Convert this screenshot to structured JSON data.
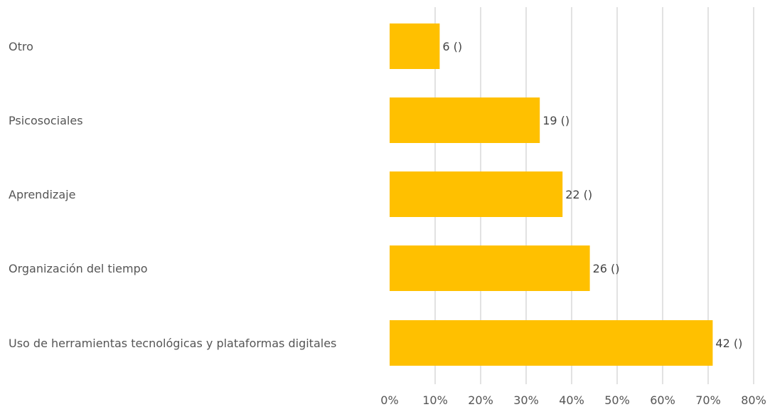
{
  "chart_data": {
    "type": "bar",
    "orientation": "horizontal",
    "categories": [
      "Otro",
      "Psicosociales",
      "Aprendizaje",
      "Organización del tiempo",
      "Uso de herramientas tecnológicas y plataformas digitales"
    ],
    "values": [
      0.11,
      0.33,
      0.38,
      0.44,
      0.71
    ],
    "data_labels": [
      "6 ()",
      "19 ()",
      "22 ()",
      "26 ()",
      "42 ()"
    ],
    "xlim": [
      0,
      0.8
    ],
    "x_ticks": [
      0,
      0.1,
      0.2,
      0.3,
      0.4,
      0.5,
      0.6,
      0.7,
      0.8
    ],
    "x_tick_labels": [
      "0%",
      "10%",
      "20%",
      "30%",
      "40%",
      "50%",
      "60%",
      "70%",
      "80%"
    ],
    "title": "",
    "xlabel": "",
    "ylabel": "",
    "grid": "vertical",
    "legend": "none",
    "colors": {
      "bar": "#FFC000",
      "grid": "#D9D9D9",
      "text": "#555555"
    }
  }
}
